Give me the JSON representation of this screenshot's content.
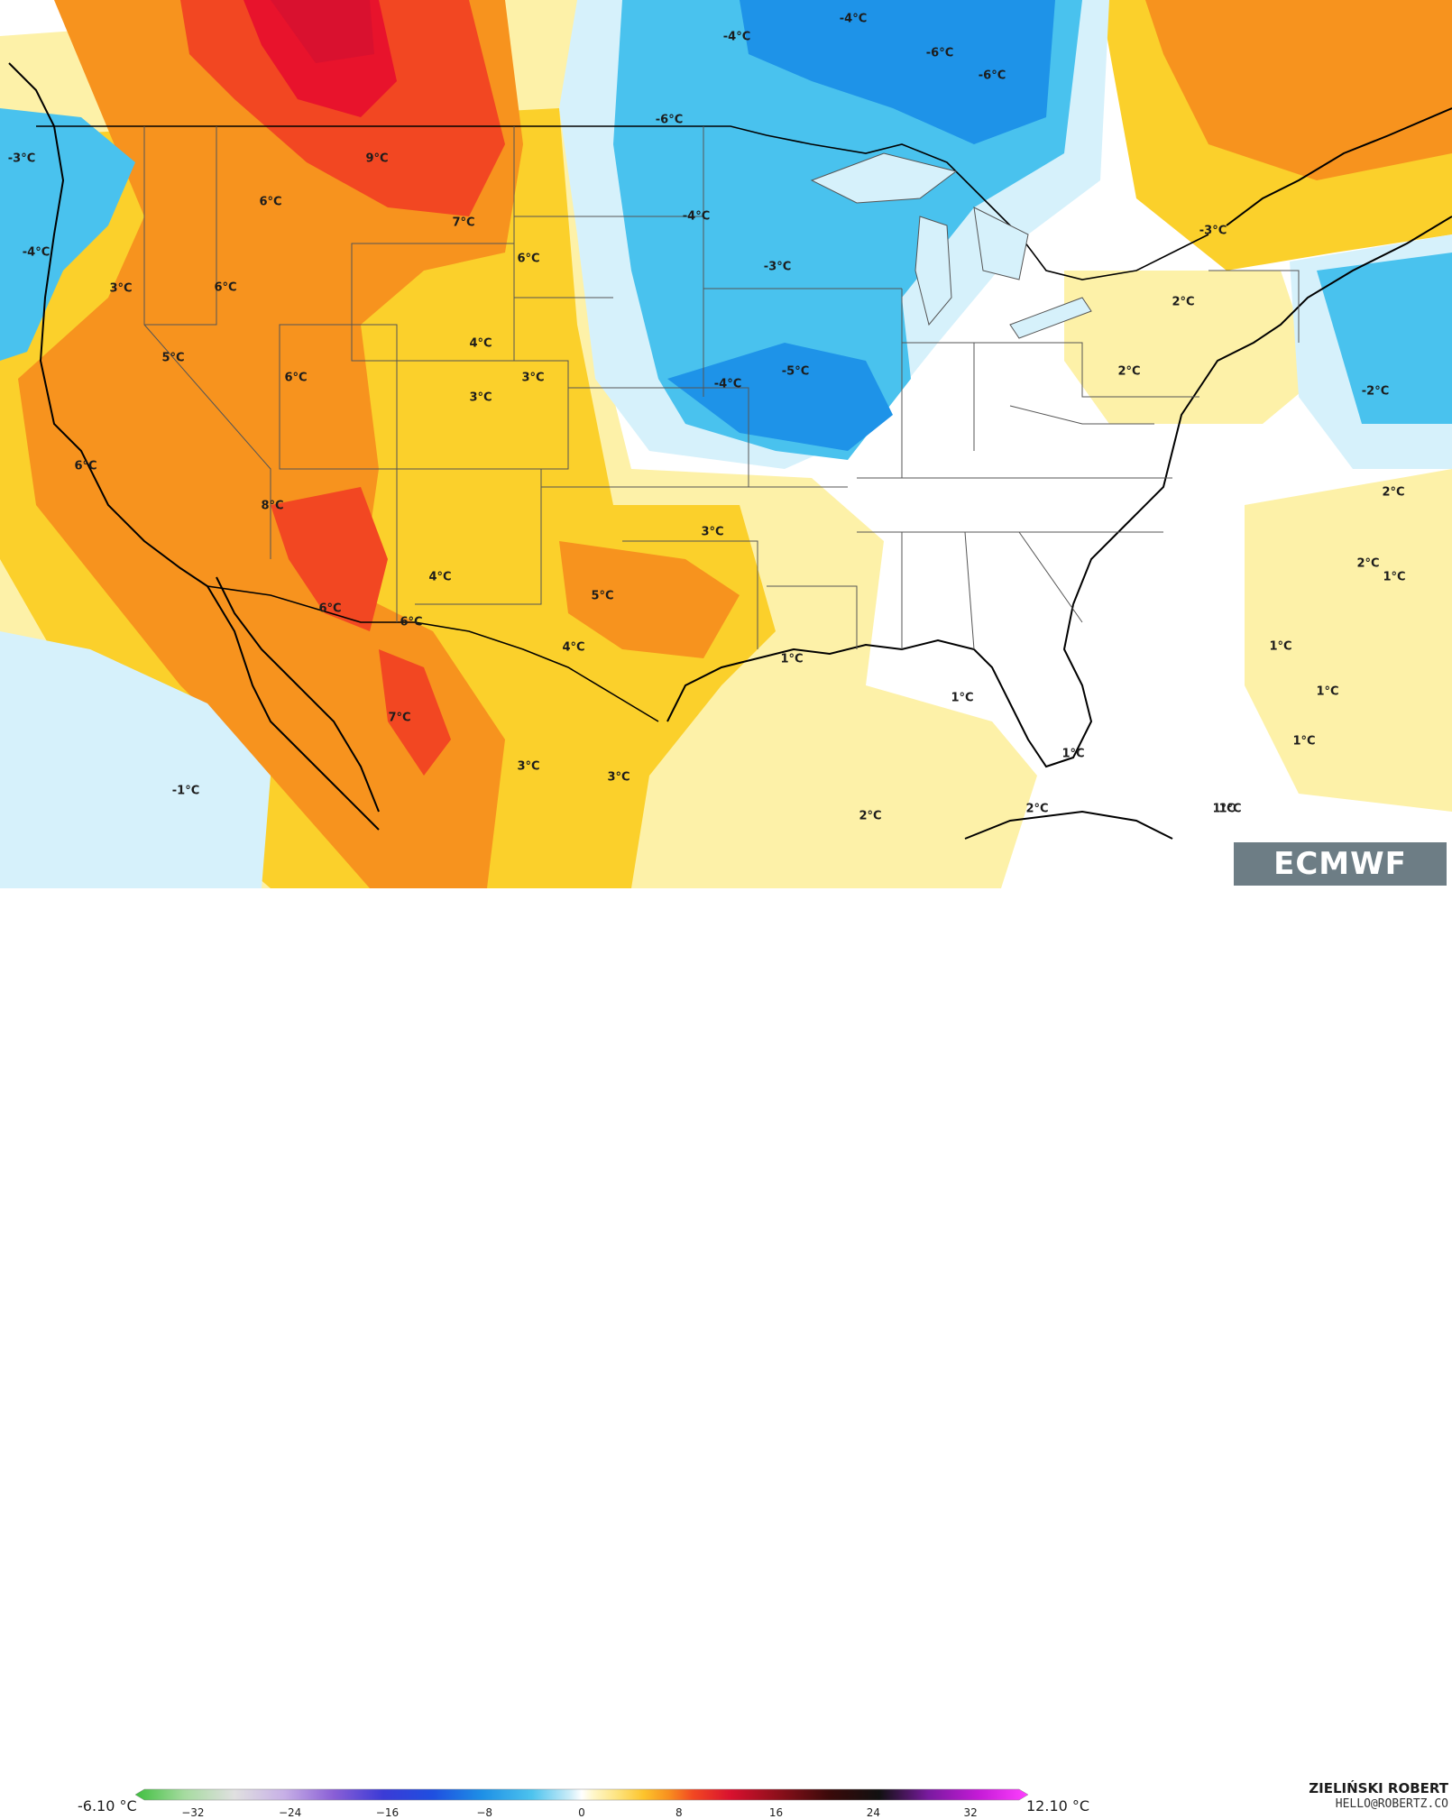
{
  "map": {
    "labels": [
      {
        "text": "9°C"
      },
      {
        "text": "7°C"
      },
      {
        "text": "6°C"
      },
      {
        "text": "6°C"
      },
      {
        "text": "6°C"
      },
      {
        "text": "3°C"
      },
      {
        "text": "5°C"
      },
      {
        "text": "6°C"
      },
      {
        "text": "4°C"
      },
      {
        "text": "3°C"
      },
      {
        "text": "3°C"
      },
      {
        "text": "6°C"
      },
      {
        "text": "8°C"
      },
      {
        "text": "4°C"
      },
      {
        "text": "5°C"
      },
      {
        "text": "3°C"
      },
      {
        "text": "6°C"
      },
      {
        "text": "6°C"
      },
      {
        "text": "4°C"
      },
      {
        "text": "7°C"
      },
      {
        "text": "3°C"
      },
      {
        "text": "3°C"
      },
      {
        "text": "-1°C"
      },
      {
        "text": "-3°C"
      },
      {
        "text": "-4°C"
      },
      {
        "text": "-4°C"
      },
      {
        "text": "-4°C"
      },
      {
        "text": "-6°C"
      },
      {
        "text": "-6°C"
      },
      {
        "text": "-6°C"
      },
      {
        "text": "-4°C"
      },
      {
        "text": "-3°C"
      },
      {
        "text": "-5°C"
      },
      {
        "text": "-4°C"
      },
      {
        "text": "-3°C"
      },
      {
        "text": "2°C"
      },
      {
        "text": "2°C"
      },
      {
        "text": "-2°C"
      },
      {
        "text": "2°C"
      },
      {
        "text": "2°C"
      },
      {
        "text": "1°C"
      },
      {
        "text": "1°C"
      },
      {
        "text": "1°C"
      },
      {
        "text": "1°C"
      },
      {
        "text": "1°C"
      },
      {
        "text": "1°C"
      },
      {
        "text": "1°C"
      },
      {
        "text": "1°C"
      },
      {
        "text": "2°C"
      },
      {
        "text": "2°C"
      },
      {
        "text": "1°C"
      }
    ]
  },
  "logo": {
    "text": "ECMWF"
  },
  "colorbar": {
    "min_label": "-6.10 °C",
    "max_label": "12.10 °C",
    "ticks": [
      "−32",
      "−24",
      "−16",
      "−8",
      "0",
      "8",
      "16",
      "24",
      "32"
    ],
    "tick_values": [
      -32,
      -24,
      -16,
      -8,
      0,
      8,
      16,
      24,
      32
    ],
    "range": [
      -36,
      36
    ],
    "stops": [
      {
        "v": -36,
        "c": "#3fbf3f"
      },
      {
        "v": -32,
        "c": "#a6dba0"
      },
      {
        "v": -28,
        "c": "#e0e0e0"
      },
      {
        "v": -24,
        "c": "#c7b0e6"
      },
      {
        "v": -20,
        "c": "#8a5fd6"
      },
      {
        "v": -16,
        "c": "#3b3bd6"
      },
      {
        "v": -12,
        "c": "#1f4fe0"
      },
      {
        "v": -8,
        "c": "#1e90e6"
      },
      {
        "v": -4,
        "c": "#4dc3ee"
      },
      {
        "v": -1,
        "c": "#c9ecf8"
      },
      {
        "v": 0,
        "c": "#ffffff"
      },
      {
        "v": 1,
        "c": "#fff6c7"
      },
      {
        "v": 3,
        "c": "#fde27a"
      },
      {
        "v": 5,
        "c": "#fdc42c"
      },
      {
        "v": 7,
        "c": "#f8901f"
      },
      {
        "v": 9,
        "c": "#f24722"
      },
      {
        "v": 12,
        "c": "#d9112f"
      },
      {
        "v": 16,
        "c": "#8a0f1a"
      },
      {
        "v": 20,
        "c": "#3a0a0a"
      },
      {
        "v": 24,
        "c": "#111111"
      },
      {
        "v": 28,
        "c": "#7a1aa0"
      },
      {
        "v": 32,
        "c": "#c41bd6"
      },
      {
        "v": 36,
        "c": "#ff40ff"
      }
    ]
  },
  "credits": {
    "author": "ZIELIŃSKI ROBERT",
    "email": "HELLO@ROBERTZ.CO"
  },
  "colors": {
    "land_outline": "#000000",
    "state_lines": "#555555",
    "pos_strong": "#e8132c",
    "pos_orange": "#f7931e",
    "pos_yellow": "#fbd02b",
    "pos_light": "#fdf1a8",
    "neg_light": "#d6f1fb",
    "neg_cyan": "#49c2ee",
    "neg_blue": "#1e93e8",
    "logo_bg": "#6d7d85"
  }
}
